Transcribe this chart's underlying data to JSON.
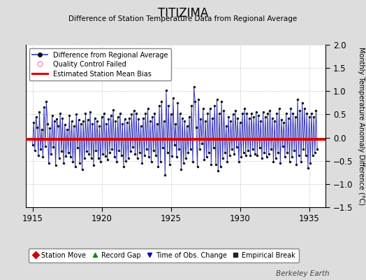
{
  "title": "TITIZIMA",
  "subtitle": "Difference of Station Temperature Data from Regional Average",
  "ylabel": "Monthly Temperature Anomaly Difference (°C)",
  "xlim": [
    1914.5,
    1936.2
  ],
  "ylim": [
    -1.5,
    2.0
  ],
  "yticks": [
    -1.5,
    -1.0,
    -0.5,
    0.0,
    0.5,
    1.0,
    1.5,
    2.0
  ],
  "xticks": [
    1915,
    1920,
    1925,
    1930,
    1935
  ],
  "bias_value": -0.03,
  "line_color": "#3333bb",
  "dot_color": "#111111",
  "bias_color": "#dd0000",
  "background_color": "#ffffff",
  "outer_background": "#dddddd",
  "watermark": "Berkeley Earth",
  "time_series": [
    -0.15,
    0.32,
    -0.28,
    0.45,
    0.22,
    -0.38,
    0.55,
    -0.25,
    0.18,
    -0.42,
    0.65,
    -0.18,
    0.78,
    0.3,
    -0.55,
    0.2,
    -0.35,
    0.48,
    -0.2,
    0.35,
    -0.6,
    0.4,
    0.25,
    -0.45,
    0.52,
    -0.3,
    0.42,
    -0.55,
    0.28,
    -0.4,
    0.18,
    -0.32,
    0.48,
    -0.42,
    0.35,
    -0.52,
    0.25,
    -0.62,
    0.5,
    -0.22,
    0.38,
    -0.55,
    0.3,
    -0.68,
    0.35,
    -0.45,
    0.52,
    -0.3,
    0.38,
    -0.35,
    0.55,
    -0.45,
    0.3,
    -0.6,
    0.42,
    -0.28,
    0.35,
    -0.45,
    0.25,
    -0.52,
    0.45,
    -0.35,
    0.52,
    -0.4,
    0.3,
    -0.48,
    0.4,
    -0.32,
    0.48,
    -0.25,
    0.6,
    -0.42,
    0.35,
    -0.52,
    0.45,
    -0.28,
    0.52,
    -0.38,
    0.3,
    -0.62,
    0.4,
    -0.5,
    0.32,
    -0.45,
    0.42,
    -0.3,
    0.5,
    -0.2,
    0.58,
    -0.35,
    0.52,
    -0.45,
    0.4,
    -0.32,
    0.25,
    -0.55,
    0.42,
    -0.38,
    0.52,
    -0.25,
    0.62,
    -0.42,
    0.35,
    -0.52,
    0.45,
    -0.28,
    0.52,
    -0.38,
    0.3,
    -0.62,
    0.68,
    -0.52,
    0.78,
    -0.22,
    0.35,
    -0.8,
    1.02,
    -0.32,
    0.68,
    -0.58,
    0.5,
    -0.4,
    0.85,
    -0.15,
    0.3,
    -0.42,
    0.75,
    -0.25,
    0.52,
    -0.68,
    0.42,
    -0.55,
    0.35,
    -0.45,
    0.25,
    -0.32,
    0.45,
    -0.25,
    0.68,
    -0.52,
    1.1,
    0.78,
    0.22,
    -0.62,
    0.82,
    -0.25,
    0.4,
    -0.12,
    0.62,
    -0.48,
    0.35,
    -0.42,
    0.52,
    -0.32,
    0.62,
    -0.58,
    0.42,
    -0.22,
    0.68,
    -0.58,
    0.82,
    -0.72,
    0.52,
    -0.62,
    0.78,
    -0.45,
    0.58,
    -0.32,
    0.25,
    -0.52,
    0.45,
    -0.38,
    0.35,
    -0.25,
    0.5,
    -0.35,
    0.58,
    -0.2,
    0.42,
    -0.52,
    0.32,
    -0.42,
    0.52,
    -0.32,
    0.62,
    -0.38,
    0.52,
    -0.28,
    0.42,
    -0.38,
    0.52,
    -0.25,
    0.45,
    -0.35,
    0.55,
    -0.38,
    0.48,
    -0.22,
    0.35,
    -0.45,
    0.55,
    -0.32,
    0.45,
    -0.42,
    0.52,
    -0.35,
    0.58,
    -0.25,
    0.42,
    -0.52,
    0.35,
    -0.45,
    0.52,
    -0.32,
    0.62,
    -0.55,
    0.38,
    -0.18,
    0.32,
    -0.42,
    0.52,
    -0.32,
    0.42,
    -0.52,
    0.62,
    -0.42,
    0.52,
    -0.28,
    0.45,
    -0.58,
    0.82,
    -0.38,
    0.58,
    -0.52,
    0.75,
    -0.25,
    0.62,
    -0.38,
    0.52,
    -0.65,
    0.45,
    -0.55,
    0.52,
    -0.38,
    0.45,
    -0.32,
    0.58,
    -0.25
  ]
}
